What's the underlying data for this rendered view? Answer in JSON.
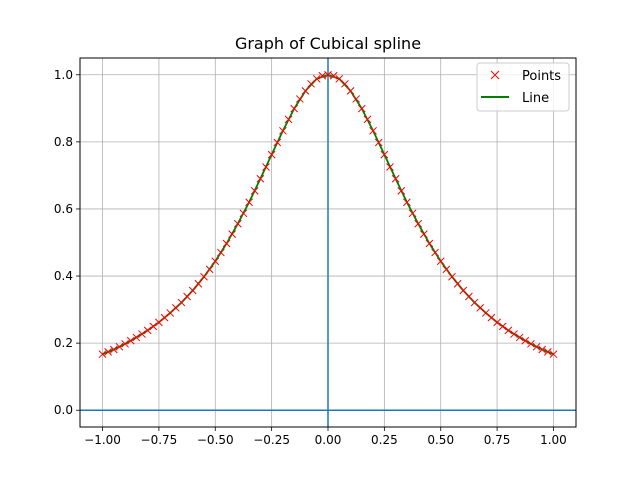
{
  "chart_data": {
    "type": "line",
    "title": "Graph of Cubical spline",
    "xlabel": "",
    "ylabel": "",
    "xlim": [
      -1.1,
      1.1
    ],
    "ylim": [
      -0.05,
      1.05
    ],
    "x_ticks": [
      -1.0,
      -0.75,
      -0.5,
      -0.25,
      0.0,
      0.25,
      0.5,
      0.75,
      1.0
    ],
    "x_tick_labels": [
      "−1.00",
      "−0.75",
      "−0.50",
      "−0.25",
      "0.00",
      "0.25",
      "0.50",
      "0.75",
      "1.00"
    ],
    "y_ticks": [
      0.0,
      0.2,
      0.4,
      0.6,
      0.8,
      1.0
    ],
    "y_tick_labels": [
      "0.0",
      "0.2",
      "0.4",
      "0.6",
      "0.8",
      "1.0"
    ],
    "grid": true,
    "legend_position": "top-right",
    "reference_lines": {
      "x": 0,
      "y": 0,
      "color": "#1f77b4"
    },
    "series": [
      {
        "name": "Points",
        "style": "markers",
        "marker": "x",
        "color": "#ff0000",
        "x": [
          -1.0,
          -0.975,
          -0.95,
          -0.925,
          -0.9,
          -0.875,
          -0.85,
          -0.825,
          -0.8,
          -0.775,
          -0.75,
          -0.725,
          -0.7,
          -0.675,
          -0.65,
          -0.625,
          -0.6,
          -0.575,
          -0.55,
          -0.525,
          -0.5,
          -0.475,
          -0.45,
          -0.425,
          -0.4,
          -0.375,
          -0.35,
          -0.325,
          -0.3,
          -0.275,
          -0.25,
          -0.225,
          -0.2,
          -0.175,
          -0.15,
          -0.125,
          -0.1,
          -0.075,
          -0.05,
          -0.025,
          0.0,
          0.025,
          0.05,
          0.075,
          0.1,
          0.125,
          0.15,
          0.175,
          0.2,
          0.225,
          0.25,
          0.275,
          0.3,
          0.325,
          0.35,
          0.375,
          0.4,
          0.425,
          0.45,
          0.475,
          0.5,
          0.525,
          0.55,
          0.575,
          0.6,
          0.625,
          0.65,
          0.675,
          0.7,
          0.725,
          0.75,
          0.775,
          0.8,
          0.825,
          0.85,
          0.875,
          0.9,
          0.925,
          0.95,
          0.975,
          1.0
        ],
        "y": [
          0.167,
          0.174,
          0.181,
          0.189,
          0.198,
          0.207,
          0.217,
          0.227,
          0.238,
          0.25,
          0.262,
          0.276,
          0.29,
          0.305,
          0.321,
          0.339,
          0.357,
          0.377,
          0.398,
          0.42,
          0.444,
          0.47,
          0.497,
          0.525,
          0.556,
          0.587,
          0.62,
          0.654,
          0.69,
          0.725,
          0.762,
          0.798,
          0.833,
          0.867,
          0.899,
          0.928,
          0.952,
          0.973,
          0.988,
          0.997,
          1.0,
          0.997,
          0.988,
          0.973,
          0.952,
          0.928,
          0.899,
          0.867,
          0.833,
          0.798,
          0.762,
          0.725,
          0.69,
          0.654,
          0.62,
          0.587,
          0.556,
          0.525,
          0.497,
          0.47,
          0.444,
          0.42,
          0.398,
          0.377,
          0.357,
          0.339,
          0.321,
          0.305,
          0.29,
          0.276,
          0.262,
          0.25,
          0.238,
          0.227,
          0.217,
          0.207,
          0.198,
          0.189,
          0.181,
          0.174,
          0.167
        ]
      },
      {
        "name": "Line",
        "style": "line",
        "color": "#008000",
        "x": [
          -1.0,
          -0.95,
          -0.9,
          -0.85,
          -0.8,
          -0.75,
          -0.7,
          -0.65,
          -0.6,
          -0.55,
          -0.5,
          -0.45,
          -0.4,
          -0.35,
          -0.3,
          -0.25,
          -0.2,
          -0.15,
          -0.1,
          -0.05,
          0.0,
          0.05,
          0.1,
          0.15,
          0.2,
          0.25,
          0.3,
          0.35,
          0.4,
          0.45,
          0.5,
          0.55,
          0.6,
          0.65,
          0.7,
          0.75,
          0.8,
          0.85,
          0.9,
          0.95,
          1.0
        ],
        "y": [
          0.167,
          0.181,
          0.198,
          0.217,
          0.238,
          0.262,
          0.29,
          0.321,
          0.357,
          0.398,
          0.444,
          0.497,
          0.556,
          0.62,
          0.69,
          0.762,
          0.833,
          0.899,
          0.952,
          0.988,
          1.0,
          0.988,
          0.952,
          0.899,
          0.833,
          0.762,
          0.69,
          0.62,
          0.556,
          0.497,
          0.444,
          0.398,
          0.357,
          0.321,
          0.29,
          0.262,
          0.238,
          0.217,
          0.198,
          0.181,
          0.167
        ]
      }
    ]
  }
}
